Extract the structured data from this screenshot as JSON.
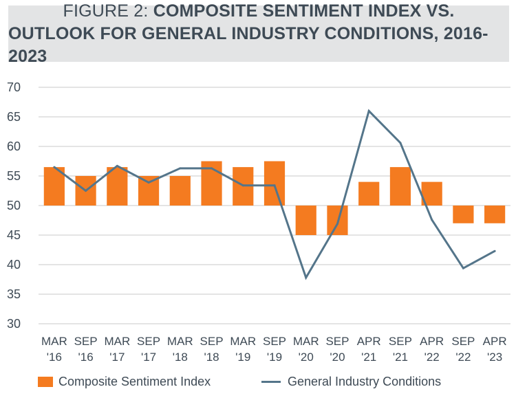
{
  "figure": {
    "title_prefix": "FIGURE 2:",
    "title_line1_bold": "COMPOSITE SENTIMENT INDEX VS.",
    "title_line2_bold": "OUTLOOK FOR GENERAL INDUSTRY CONDITIONS, 2016-2023"
  },
  "colors": {
    "bar": "#f47b20",
    "line": "#54758a",
    "grid": "#c8c8c8",
    "text": "#3e4a55",
    "title_bg": "#e3e4e5"
  },
  "legend": {
    "bar_label": "Composite Sentiment Index",
    "line_label": "General Industry Conditions"
  },
  "chart_data": {
    "type": "bar",
    "title": "COMPOSITE SENTIMENT INDEX VS. OUTLOOK FOR GENERAL INDUSTRY CONDITIONS, 2016-2023",
    "categories": [
      "MAR '16",
      "SEP '16",
      "MAR '17",
      "SEP '17",
      "MAR '18",
      "SEP '18",
      "MAR '19",
      "SEP '19",
      "MAR '20",
      "SEP '20",
      "APR '21",
      "SEP '21",
      "APR '22",
      "SEP '22",
      "APR '23"
    ],
    "category_lines": [
      [
        "MAR",
        "'16"
      ],
      [
        "SEP",
        "'16"
      ],
      [
        "MAR",
        "'17"
      ],
      [
        "SEP",
        "'17"
      ],
      [
        "MAR",
        "'18"
      ],
      [
        "SEP",
        "'18"
      ],
      [
        "MAR",
        "'19"
      ],
      [
        "SEP",
        "'19"
      ],
      [
        "MAR",
        "'20"
      ],
      [
        "SEP",
        "'20"
      ],
      [
        "APR",
        "'21"
      ],
      [
        "SEP",
        "'21"
      ],
      [
        "APR",
        "'22"
      ],
      [
        "SEP",
        "'22"
      ],
      [
        "APR",
        "'23"
      ]
    ],
    "baseline": 50,
    "ylim": [
      30,
      70
    ],
    "yticks": [
      30,
      35,
      40,
      45,
      50,
      55,
      60,
      65,
      70
    ],
    "grid": true,
    "legend_position": "bottom",
    "series": [
      {
        "name": "Composite Sentiment Index",
        "type": "bar",
        "values": [
          56.5,
          55,
          56.5,
          55,
          55,
          57.5,
          56.5,
          57.5,
          45,
          45,
          54,
          56.5,
          54,
          47,
          47
        ]
      },
      {
        "name": "General Industry Conditions",
        "type": "line",
        "values": [
          56.5,
          52.5,
          56.7,
          53.9,
          56.3,
          56.3,
          53.4,
          53.4,
          37.8,
          46.9,
          66,
          60.6,
          47.6,
          39.4,
          42.3
        ]
      }
    ]
  }
}
